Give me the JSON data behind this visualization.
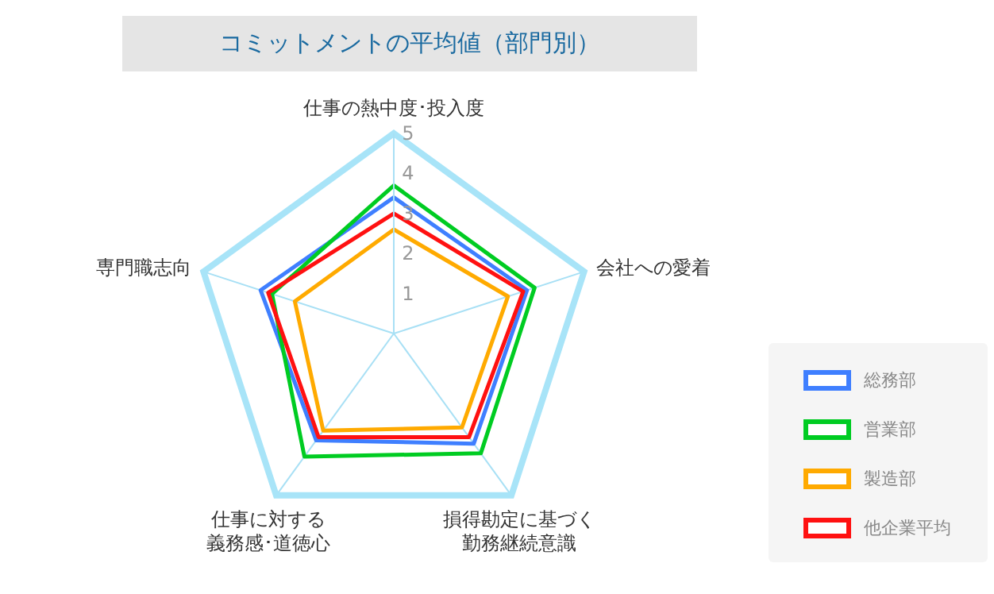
{
  "chart_data": {
    "type": "radar",
    "title": "コミットメントの平均値（部門別）",
    "categories": [
      "仕事の熱中度･投入度",
      "会社への愛着",
      "損得勘定に基づく勤務継続意識",
      "仕事に対する義務感･道徳心",
      "専門職志向"
    ],
    "series": [
      {
        "name": "総務部",
        "color": "#3f7fff",
        "values": [
          3.4,
          3.5,
          3.4,
          3.3,
          3.5
        ]
      },
      {
        "name": "営業部",
        "color": "#00cc22",
        "values": [
          3.7,
          3.7,
          3.7,
          3.8,
          3.2
        ]
      },
      {
        "name": "製造部",
        "color": "#ffaa00",
        "values": [
          2.6,
          3.0,
          2.9,
          3.0,
          2.6
        ]
      },
      {
        "name": "他企業平均",
        "color": "#ff1111",
        "values": [
          3.0,
          3.4,
          3.2,
          3.2,
          3.3
        ]
      }
    ],
    "ylim": [
      0,
      5
    ],
    "yticks": [
      1,
      2,
      3,
      4,
      5
    ],
    "grid": true,
    "legend": "bottom right",
    "marker": "none",
    "line_style": "solid"
  }
}
